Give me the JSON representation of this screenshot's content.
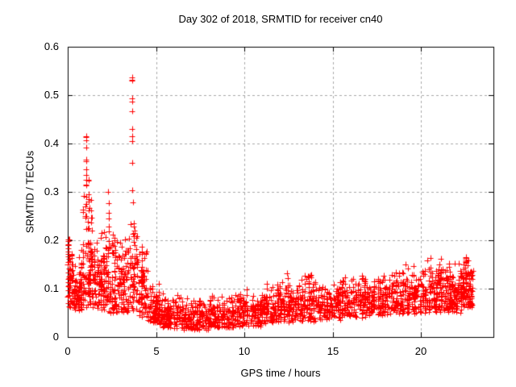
{
  "window_title": "Day 302 of 2018, SRMTID for receiver cn40",
  "chart_data": {
    "type": "scatter",
    "title": "Day 302 of 2018, SRMTID for receiver cn40",
    "xlabel": "GPS time / hours",
    "ylabel": "SRMTID / TECUs",
    "xlim": [
      0,
      24.1
    ],
    "ylim": [
      0,
      0.6
    ],
    "xticks": {
      "values": [
        0,
        5,
        10,
        15,
        20
      ],
      "labels": [
        "0",
        "5",
        "10",
        "15",
        "20"
      ]
    },
    "yticks": {
      "values": [
        0,
        0.1,
        0.2,
        0.3,
        0.4,
        0.5,
        0.6
      ],
      "labels": [
        "0",
        "0.1",
        "0.2",
        "0.3",
        "0.4",
        "0.5",
        "0.6"
      ]
    },
    "grid": true,
    "grid_style": "dashed",
    "grid_color": "#a8a8a8",
    "frame_color": "#000000",
    "legend": "none",
    "marker": {
      "shape": "plus",
      "color": "#ff0000",
      "size": 7
    },
    "seed": 2018302,
    "description": "Dense noisy scatter of SRMTID vs GPS time; high variance 0-5 h with spikes to 0.54, quiet band ~0.05 from 5-13 h, slowly rising band 0.05-0.17 until data ends near 23 h",
    "segments": [
      {
        "x0": 0.0,
        "x1": 0.35,
        "ylo": 0.06,
        "yhi": 0.21,
        "n": 55
      },
      {
        "x0": 0.35,
        "x1": 0.8,
        "ylo": 0.055,
        "yhi": 0.17,
        "n": 65
      },
      {
        "x0": 0.8,
        "x1": 1.45,
        "ylo": 0.06,
        "yhi": 0.3,
        "n": 95
      },
      {
        "x0": 1.45,
        "x1": 2.05,
        "ylo": 0.055,
        "yhi": 0.22,
        "n": 85
      },
      {
        "x0": 2.05,
        "x1": 2.65,
        "ylo": 0.05,
        "yhi": 0.26,
        "n": 80
      },
      {
        "x0": 2.65,
        "x1": 3.35,
        "ylo": 0.05,
        "yhi": 0.22,
        "n": 90
      },
      {
        "x0": 3.35,
        "x1": 3.95,
        "ylo": 0.05,
        "yhi": 0.26,
        "n": 65
      },
      {
        "x0": 3.95,
        "x1": 4.55,
        "ylo": 0.04,
        "yhi": 0.19,
        "n": 70
      },
      {
        "x0": 4.55,
        "x1": 5.2,
        "ylo": 0.028,
        "yhi": 0.12,
        "n": 75
      },
      {
        "x0": 5.2,
        "x1": 6.5,
        "ylo": 0.018,
        "yhi": 0.095,
        "n": 130
      },
      {
        "x0": 6.5,
        "x1": 8.0,
        "ylo": 0.015,
        "yhi": 0.09,
        "n": 150
      },
      {
        "x0": 8.0,
        "x1": 9.5,
        "ylo": 0.018,
        "yhi": 0.095,
        "n": 150
      },
      {
        "x0": 9.5,
        "x1": 11.0,
        "ylo": 0.022,
        "yhi": 0.1,
        "n": 145
      },
      {
        "x0": 11.0,
        "x1": 12.0,
        "ylo": 0.028,
        "yhi": 0.115,
        "n": 100
      },
      {
        "x0": 12.0,
        "x1": 13.0,
        "ylo": 0.03,
        "yhi": 0.125,
        "n": 100
      },
      {
        "x0": 13.0,
        "x1": 14.0,
        "ylo": 0.032,
        "yhi": 0.135,
        "n": 105
      },
      {
        "x0": 14.0,
        "x1": 15.5,
        "ylo": 0.035,
        "yhi": 0.12,
        "n": 140
      },
      {
        "x0": 15.5,
        "x1": 17.0,
        "ylo": 0.04,
        "yhi": 0.135,
        "n": 145
      },
      {
        "x0": 17.0,
        "x1": 18.5,
        "ylo": 0.045,
        "yhi": 0.14,
        "n": 145
      },
      {
        "x0": 18.5,
        "x1": 20.0,
        "ylo": 0.048,
        "yhi": 0.155,
        "n": 150
      },
      {
        "x0": 20.0,
        "x1": 21.5,
        "ylo": 0.05,
        "yhi": 0.165,
        "n": 155
      },
      {
        "x0": 21.5,
        "x1": 22.4,
        "ylo": 0.05,
        "yhi": 0.16,
        "n": 115
      },
      {
        "x0": 22.4,
        "x1": 22.95,
        "ylo": 0.06,
        "yhi": 0.165,
        "n": 85
      }
    ],
    "streaks": [
      {
        "x": 0.06,
        "ylo": 0.08,
        "yhi": 0.205,
        "n": 12
      },
      {
        "x": 1.05,
        "ylo": 0.22,
        "yhi": 0.415,
        "n": 13
      },
      {
        "x": 1.18,
        "ylo": 0.16,
        "yhi": 0.36,
        "n": 9
      },
      {
        "x": 1.32,
        "ylo": 0.14,
        "yhi": 0.3,
        "n": 8
      },
      {
        "x": 2.32,
        "ylo": 0.15,
        "yhi": 0.3,
        "n": 8
      },
      {
        "x": 3.67,
        "ylo": 0.27,
        "yhi": 0.537,
        "n": 11
      },
      {
        "x": 3.74,
        "ylo": 0.1,
        "yhi": 0.26,
        "n": 9
      },
      {
        "x": 4.2,
        "ylo": 0.06,
        "yhi": 0.19,
        "n": 8
      },
      {
        "x": 12.45,
        "ylo": 0.06,
        "yhi": 0.145,
        "n": 8
      },
      {
        "x": 13.65,
        "ylo": 0.07,
        "yhi": 0.15,
        "n": 8
      },
      {
        "x": 20.55,
        "ylo": 0.08,
        "yhi": 0.18,
        "n": 8
      },
      {
        "x": 21.15,
        "ylo": 0.08,
        "yhi": 0.17,
        "n": 8
      },
      {
        "x": 22.55,
        "ylo": 0.08,
        "yhi": 0.17,
        "n": 8
      }
    ],
    "notable_points": [
      {
        "x": 3.67,
        "y": 0.537,
        "note": "maximum"
      },
      {
        "x": 1.05,
        "y": 0.415,
        "note": "secondary spike"
      },
      {
        "x": 2.3,
        "y": 0.3,
        "note": "isolated high point"
      }
    ]
  }
}
